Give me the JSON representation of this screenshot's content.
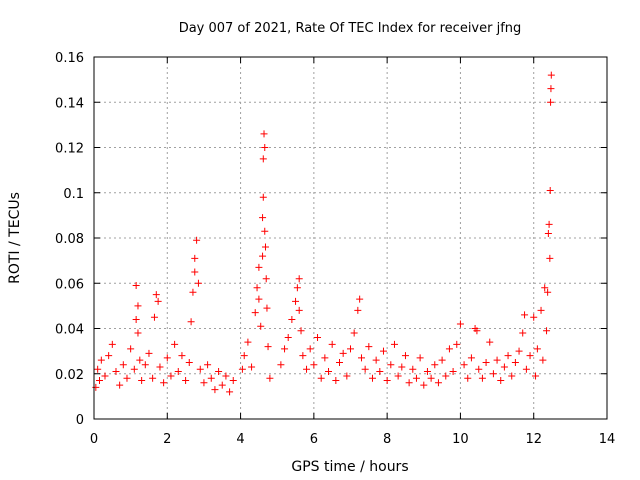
{
  "chart_data": {
    "type": "scatter",
    "title": "Day 007 of 2021, Rate Of TEC Index for receiver jfng",
    "xlabel": "GPS time / hours",
    "ylabel": "ROTI / TECUs",
    "xlim": [
      0,
      14
    ],
    "ylim": [
      0,
      0.16
    ],
    "xticks": [
      "0",
      "2",
      "4",
      "6",
      "8",
      "10",
      "12",
      "14"
    ],
    "yticks": [
      "0",
      "0.02",
      "0.04",
      "0.06",
      "0.08",
      "0.1",
      "0.12",
      "0.14",
      "0.16"
    ],
    "grid": true,
    "marker": "+",
    "series": [
      {
        "name": "ROTI",
        "color": "#ff0000",
        "x": [
          0.05,
          0.1,
          0.15,
          0.2,
          0.3,
          0.4,
          0.5,
          0.6,
          0.7,
          0.8,
          0.9,
          1.0,
          1.1,
          1.15,
          1.15,
          1.2,
          1.2,
          1.25,
          1.3,
          1.4,
          1.5,
          1.6,
          1.65,
          1.7,
          1.75,
          1.8,
          1.9,
          2.0,
          2.1,
          2.2,
          2.3,
          2.4,
          2.5,
          2.6,
          2.65,
          2.7,
          2.75,
          2.75,
          2.8,
          2.85,
          2.9,
          3.0,
          3.1,
          3.2,
          3.3,
          3.4,
          3.5,
          3.6,
          3.7,
          3.8,
          4.05,
          4.1,
          4.2,
          4.3,
          4.4,
          4.45,
          4.5,
          4.5,
          4.55,
          4.6,
          4.6,
          4.62,
          4.62,
          4.64,
          4.66,
          4.66,
          4.68,
          4.7,
          4.72,
          4.75,
          4.8,
          5.1,
          5.2,
          5.3,
          5.4,
          5.5,
          5.55,
          5.6,
          5.6,
          5.65,
          5.7,
          5.8,
          5.9,
          6.0,
          6.1,
          6.2,
          6.3,
          6.4,
          6.5,
          6.6,
          6.7,
          6.8,
          6.9,
          7.0,
          7.1,
          7.2,
          7.25,
          7.3,
          7.4,
          7.5,
          7.6,
          7.7,
          7.8,
          7.9,
          8.0,
          8.1,
          8.2,
          8.3,
          8.4,
          8.5,
          8.6,
          8.7,
          8.8,
          8.9,
          9.0,
          9.1,
          9.2,
          9.3,
          9.4,
          9.5,
          9.6,
          9.7,
          9.8,
          9.9,
          10.0,
          10.1,
          10.2,
          10.3,
          10.4,
          10.45,
          10.5,
          10.6,
          10.7,
          10.8,
          10.9,
          11.0,
          11.1,
          11.2,
          11.3,
          11.4,
          11.5,
          11.6,
          11.7,
          11.75,
          11.8,
          11.9,
          12.0,
          12.05,
          12.1,
          12.2,
          12.25,
          12.3,
          12.35,
          12.38,
          12.4,
          12.42,
          12.44,
          12.45,
          12.46,
          12.47,
          12.48
        ],
        "y": [
          0.014,
          0.022,
          0.017,
          0.026,
          0.019,
          0.028,
          0.033,
          0.021,
          0.015,
          0.024,
          0.018,
          0.031,
          0.022,
          0.059,
          0.044,
          0.05,
          0.038,
          0.026,
          0.017,
          0.024,
          0.029,
          0.018,
          0.045,
          0.055,
          0.052,
          0.023,
          0.016,
          0.027,
          0.019,
          0.033,
          0.021,
          0.028,
          0.017,
          0.025,
          0.043,
          0.056,
          0.065,
          0.071,
          0.079,
          0.06,
          0.022,
          0.016,
          0.024,
          0.018,
          0.013,
          0.021,
          0.015,
          0.019,
          0.012,
          0.017,
          0.022,
          0.028,
          0.034,
          0.023,
          0.047,
          0.058,
          0.067,
          0.053,
          0.041,
          0.072,
          0.089,
          0.098,
          0.115,
          0.126,
          0.12,
          0.083,
          0.076,
          0.062,
          0.049,
          0.032,
          0.018,
          0.024,
          0.031,
          0.036,
          0.044,
          0.052,
          0.058,
          0.062,
          0.048,
          0.039,
          0.028,
          0.022,
          0.031,
          0.024,
          0.036,
          0.018,
          0.027,
          0.021,
          0.033,
          0.017,
          0.025,
          0.029,
          0.019,
          0.031,
          0.038,
          0.048,
          0.053,
          0.027,
          0.022,
          0.032,
          0.018,
          0.026,
          0.021,
          0.03,
          0.017,
          0.024,
          0.033,
          0.019,
          0.023,
          0.028,
          0.016,
          0.022,
          0.018,
          0.027,
          0.015,
          0.021,
          0.018,
          0.024,
          0.016,
          0.026,
          0.019,
          0.031,
          0.021,
          0.033,
          0.042,
          0.024,
          0.018,
          0.027,
          0.04,
          0.039,
          0.022,
          0.018,
          0.025,
          0.034,
          0.02,
          0.026,
          0.017,
          0.023,
          0.028,
          0.019,
          0.025,
          0.03,
          0.038,
          0.046,
          0.022,
          0.028,
          0.045,
          0.019,
          0.031,
          0.048,
          0.026,
          0.058,
          0.039,
          0.056,
          0.082,
          0.086,
          0.071,
          0.101,
          0.14,
          0.146,
          0.152
        ]
      }
    ]
  }
}
